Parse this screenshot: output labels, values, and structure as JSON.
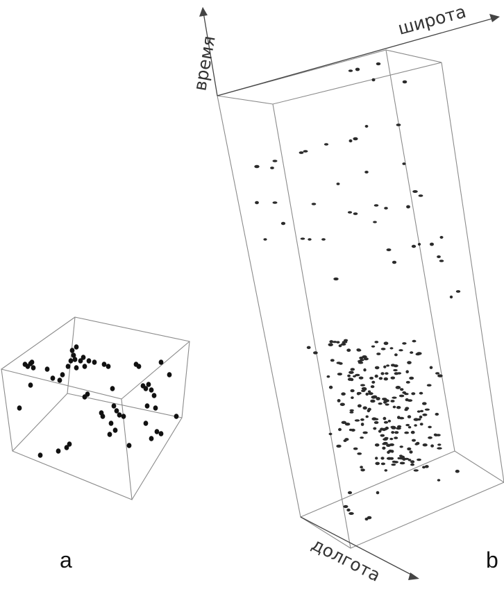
{
  "panels": [
    {
      "id": "a",
      "label": "a"
    },
    {
      "id": "b",
      "label": "b"
    }
  ],
  "axes": {
    "time": "время",
    "latitude": "широта",
    "longitude": "долгота"
  }
}
